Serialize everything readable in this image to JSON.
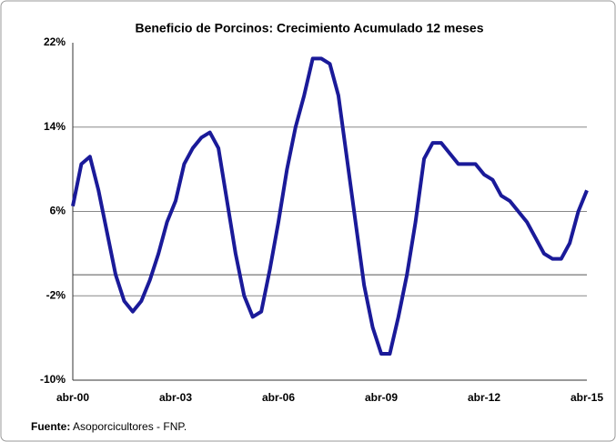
{
  "chart_data": {
    "type": "line",
    "title": "Beneficio de Porcinos: Crecimiento Acumulado 12 meses",
    "source_label": "Fuente:",
    "source": "Asoporcicultores - FNP.",
    "categories": [
      "abr-00",
      null,
      null,
      null,
      null,
      null,
      null,
      null,
      null,
      null,
      null,
      null,
      "abr-03",
      null,
      null,
      null,
      null,
      null,
      null,
      null,
      null,
      null,
      null,
      null,
      "abr-06",
      null,
      null,
      null,
      null,
      null,
      null,
      null,
      null,
      null,
      null,
      null,
      "abr-09",
      null,
      null,
      null,
      null,
      null,
      null,
      null,
      null,
      null,
      null,
      null,
      "abr-12",
      null,
      null,
      null,
      null,
      null,
      null,
      null,
      null,
      null,
      null,
      null,
      "abr-15"
    ],
    "series": [
      {
        "color": "#1a1a99",
        "values": [
          6.5,
          10.5,
          11.2,
          8,
          4,
          0,
          -2.5,
          -3.5,
          -2.5,
          -0.5,
          2,
          5,
          7,
          10.5,
          12,
          13,
          13.5,
          12,
          7,
          2,
          -2,
          -4,
          -3.5,
          0.5,
          5,
          10,
          14,
          17,
          20.5,
          20.5,
          20,
          17,
          11,
          5,
          -1,
          -5,
          -7.5,
          -7.5,
          -4,
          0,
          5,
          11,
          12.5,
          12.5,
          11.5,
          10.5,
          10.5,
          10.5,
          9.5,
          9,
          7.5,
          7,
          6,
          5,
          3.5,
          2,
          1.5,
          1.5,
          3,
          6,
          8
        ]
      }
    ],
    "ylim": [
      -10,
      22
    ],
    "yticks": [
      {
        "value": -10,
        "label": "-10%"
      },
      {
        "value": -2,
        "label": "-2%"
      },
      {
        "value": 6,
        "label": "6%"
      },
      {
        "value": 14,
        "label": "14%"
      },
      {
        "value": 22,
        "label": "22%"
      }
    ],
    "grid": true
  }
}
